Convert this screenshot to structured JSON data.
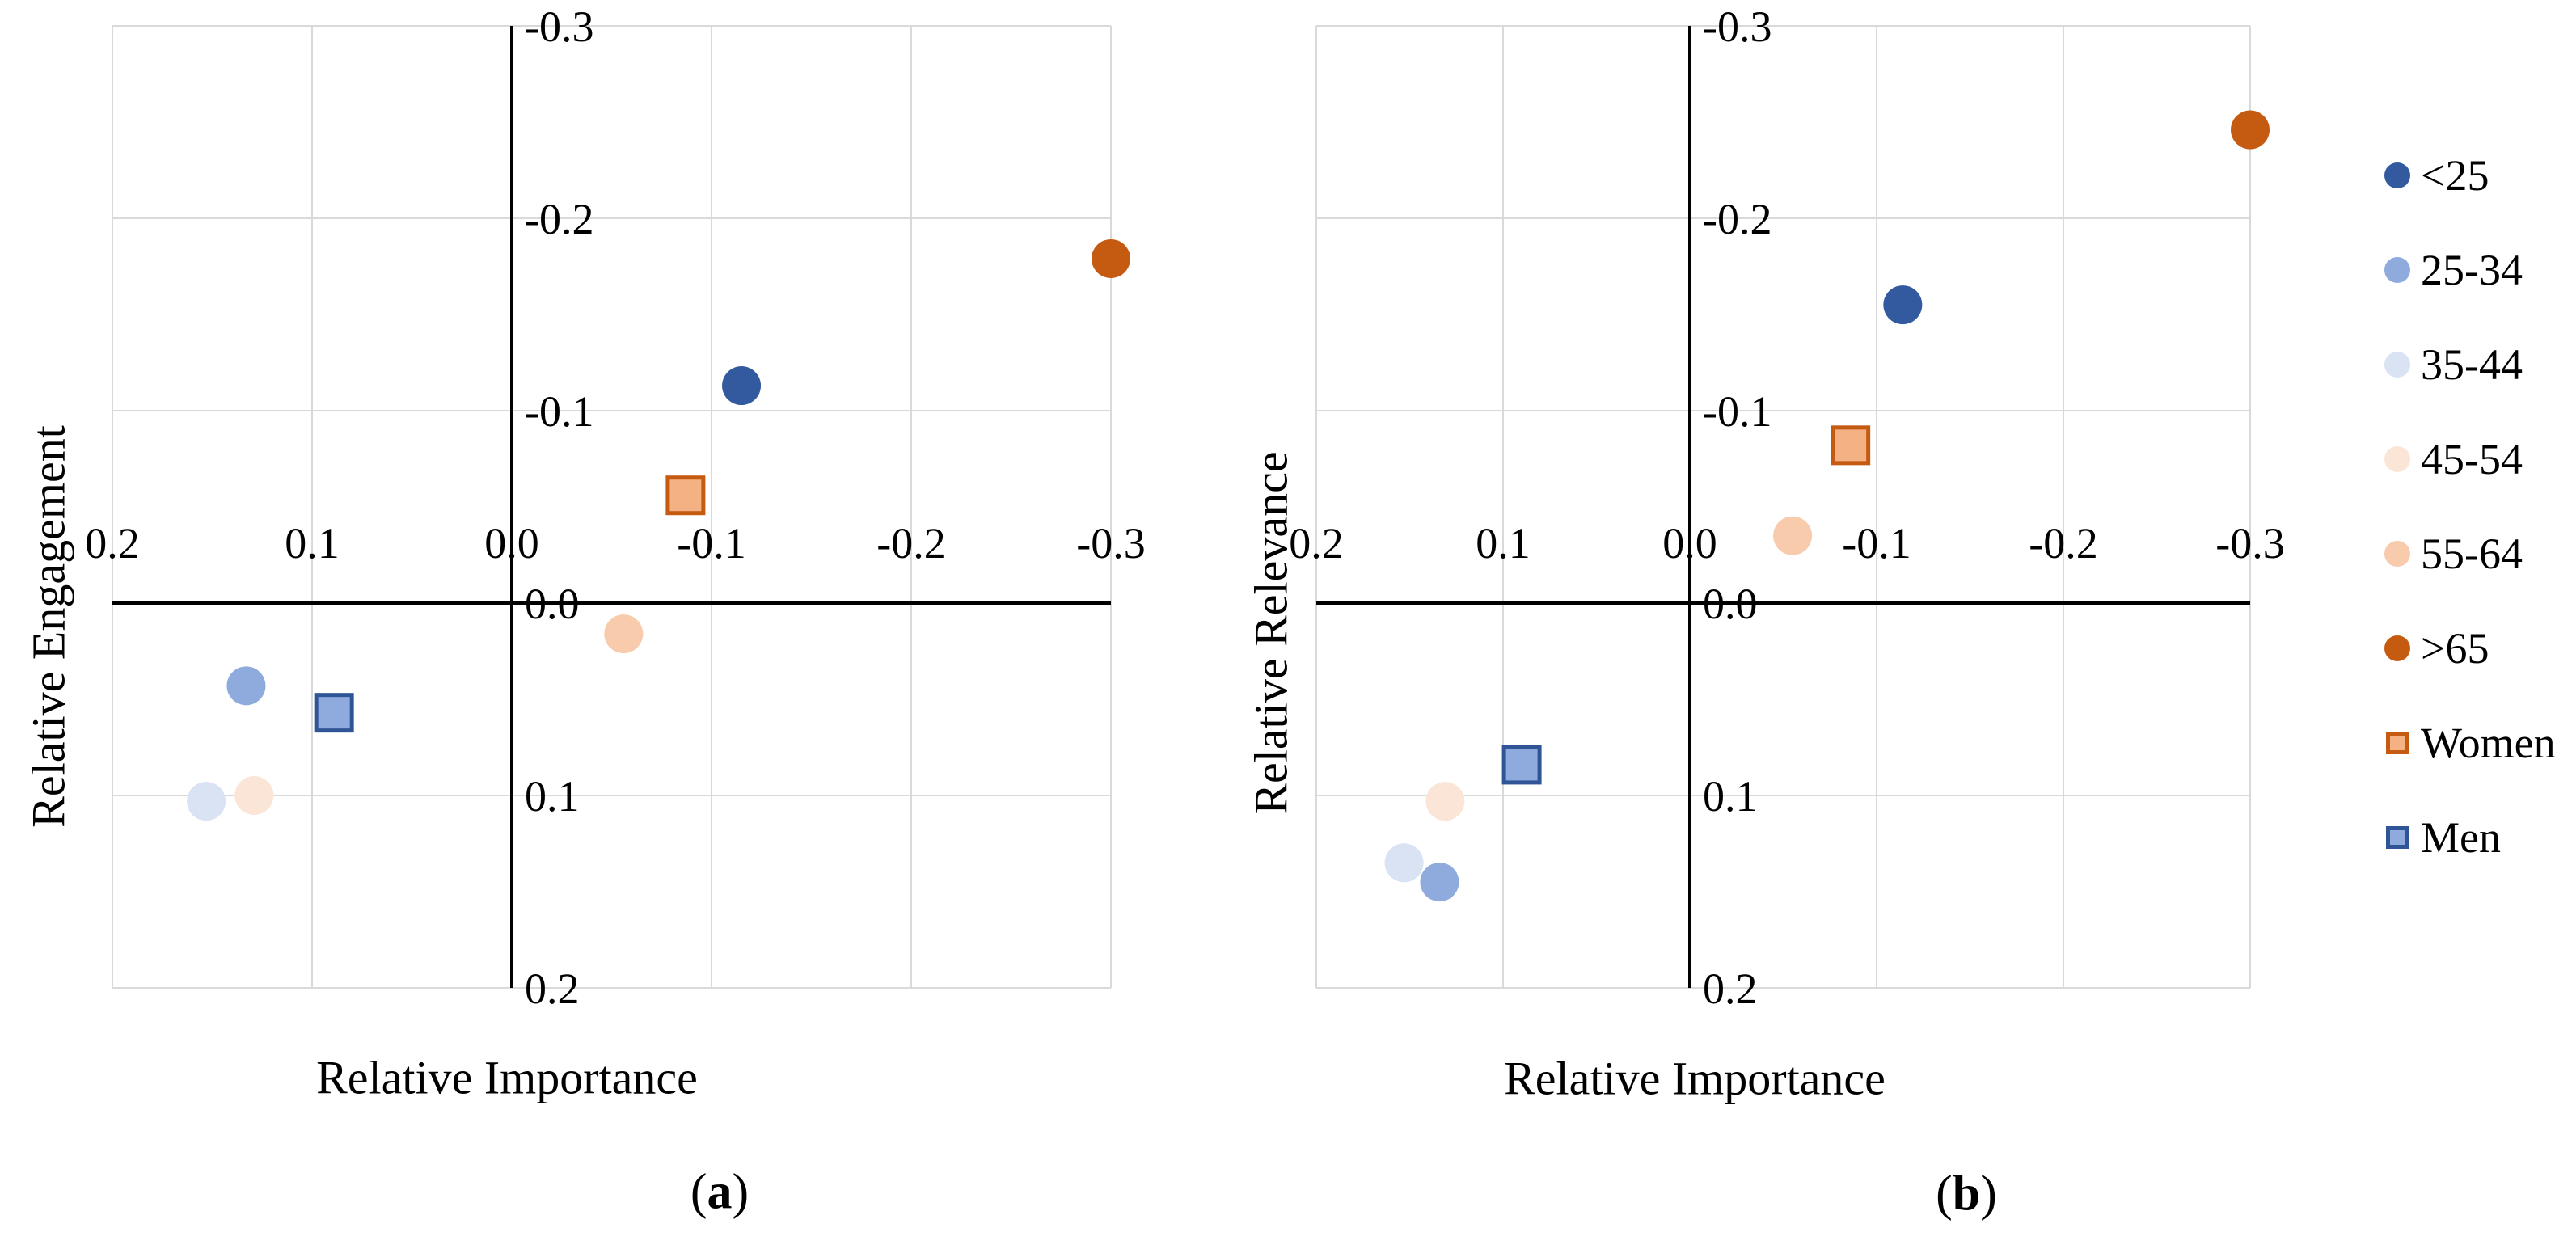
{
  "figure": {
    "background": "#FFFFFF",
    "grid_color": "#D9D9D9",
    "axis_color": "#000000",
    "tick_font_color": "#000000"
  },
  "legend": {
    "position": "right",
    "items": [
      {
        "label": "<25",
        "marker": "circle",
        "fill": "#33599F",
        "stroke": "none"
      },
      {
        "label": "25-34",
        "marker": "circle",
        "fill": "#8FAADC",
        "stroke": "none"
      },
      {
        "label": "35-44",
        "marker": "circle",
        "fill": "#DAE3F3",
        "stroke": "none"
      },
      {
        "label": "45-54",
        "marker": "circle",
        "fill": "#FBE5D6",
        "stroke": "none"
      },
      {
        "label": "55-64",
        "marker": "circle",
        "fill": "#F8CBAD",
        "stroke": "none"
      },
      {
        "label": ">65",
        "marker": "circle",
        "fill": "#C55A11",
        "stroke": "none"
      },
      {
        "label": "Women",
        "marker": "square",
        "fill": "#F4B183",
        "stroke": "#C55A11"
      },
      {
        "label": "Men",
        "marker": "square",
        "fill": "#8FAADC",
        "stroke": "#2F5597"
      }
    ]
  },
  "chart_data": [
    {
      "id": "a",
      "type": "scatter",
      "caption": {
        "open": "(",
        "letter": "a",
        "close": ")"
      },
      "xlabel": "Relative Importance",
      "ylabel": "Relative Engagement",
      "x_range": [
        0.2,
        -0.3
      ],
      "y_range": [
        -0.3,
        0.2
      ],
      "x_ticks": [
        0.2,
        0.1,
        0.0,
        -0.1,
        -0.2,
        -0.3
      ],
      "x_tick_labels": [
        "0.2",
        "0.1",
        "0.0",
        "-0.1",
        "-0.2",
        "-0.3"
      ],
      "y_ticks": [
        -0.3,
        -0.2,
        -0.1,
        0.0,
        0.1,
        0.2
      ],
      "y_tick_labels": [
        "-0.3",
        "-0.2",
        "-0.1",
        "0.0",
        "0.1",
        "0.2"
      ],
      "grid": true,
      "points": [
        {
          "group": "35-44",
          "x": 0.153,
          "y": 0.103
        },
        {
          "group": "45-54",
          "x": 0.129,
          "y": 0.1
        },
        {
          "group": "55-64",
          "x": -0.056,
          "y": 0.016
        },
        {
          "group": "25-34",
          "x": 0.133,
          "y": 0.043
        },
        {
          "group": "<25",
          "x": -0.115,
          "y": -0.113
        },
        {
          "group": ">65",
          "x": -0.3,
          "y": -0.179
        },
        {
          "group": "Women",
          "x": -0.087,
          "y": -0.056
        },
        {
          "group": "Men",
          "x": 0.089,
          "y": 0.057
        }
      ]
    },
    {
      "id": "b",
      "type": "scatter",
      "caption": {
        "open": "(",
        "letter": "b",
        "close": ")"
      },
      "xlabel": "Relative Importance",
      "ylabel": "Relative Relevance",
      "x_range": [
        0.2,
        -0.3
      ],
      "y_range": [
        -0.3,
        0.2
      ],
      "x_ticks": [
        0.2,
        0.1,
        0.0,
        -0.1,
        -0.2,
        -0.3
      ],
      "x_tick_labels": [
        "0.2",
        "0.1",
        "0.0",
        "-0.1",
        "-0.2",
        "-0.3"
      ],
      "y_ticks": [
        -0.3,
        -0.2,
        -0.1,
        0.0,
        0.1,
        0.2
      ],
      "y_tick_labels": [
        "-0.3",
        "-0.2",
        "-0.1",
        "0.0",
        "0.1",
        "0.2"
      ],
      "grid": true,
      "points": [
        {
          "group": "35-44",
          "x": 0.153,
          "y": 0.135
        },
        {
          "group": "45-54",
          "x": 0.131,
          "y": 0.103
        },
        {
          "group": "55-64",
          "x": -0.055,
          "y": -0.035
        },
        {
          "group": "25-34",
          "x": 0.134,
          "y": 0.145
        },
        {
          "group": "<25",
          "x": -0.114,
          "y": -0.155
        },
        {
          "group": ">65",
          "x": -0.3,
          "y": -0.246
        },
        {
          "group": "Women",
          "x": -0.086,
          "y": -0.082
        },
        {
          "group": "Men",
          "x": 0.09,
          "y": 0.084
        }
      ]
    }
  ]
}
